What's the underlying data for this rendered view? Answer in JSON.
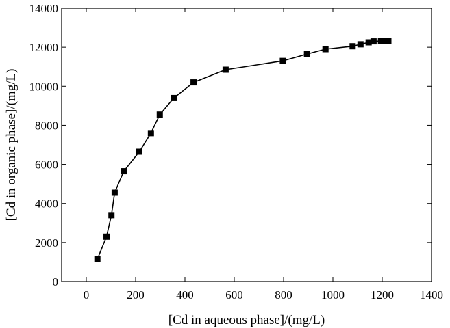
{
  "chart_data": {
    "type": "line",
    "title": "",
    "xlabel": "[Cd in aqueous phase]/(mg/L)",
    "ylabel": "[Cd in organic phase]/(mg/L)",
    "xlim": [
      -100,
      1400
    ],
    "ylim": [
      0,
      14000
    ],
    "xticks": [
      0,
      200,
      400,
      600,
      800,
      1000,
      1200,
      1400
    ],
    "xtick_labels": [
      "0",
      "200",
      "400",
      "600",
      "800",
      "1000",
      "1200",
      "1400"
    ],
    "yticks": [
      0,
      2000,
      4000,
      6000,
      8000,
      10000,
      12000,
      14000
    ],
    "ytick_labels": [
      "0",
      "2000",
      "4000",
      "6000",
      "8000",
      "10000",
      "12000",
      "14000"
    ],
    "grid": false,
    "marker": "square",
    "colors": {
      "line": "#000000",
      "marker": "#000000",
      "axis": "#000000"
    },
    "series": [
      {
        "x": [
          45,
          82,
          102,
          115,
          152,
          215,
          262,
          298,
          355,
          435,
          565,
          797,
          895,
          970,
          1080,
          1112,
          1145,
          1165,
          1195,
          1210,
          1225
        ],
        "y": [
          1150,
          2300,
          3400,
          4550,
          5650,
          6650,
          7600,
          8550,
          9400,
          10200,
          10850,
          11300,
          11650,
          11900,
          12050,
          12150,
          12250,
          12300,
          12320,
          12330,
          12330
        ]
      }
    ]
  }
}
